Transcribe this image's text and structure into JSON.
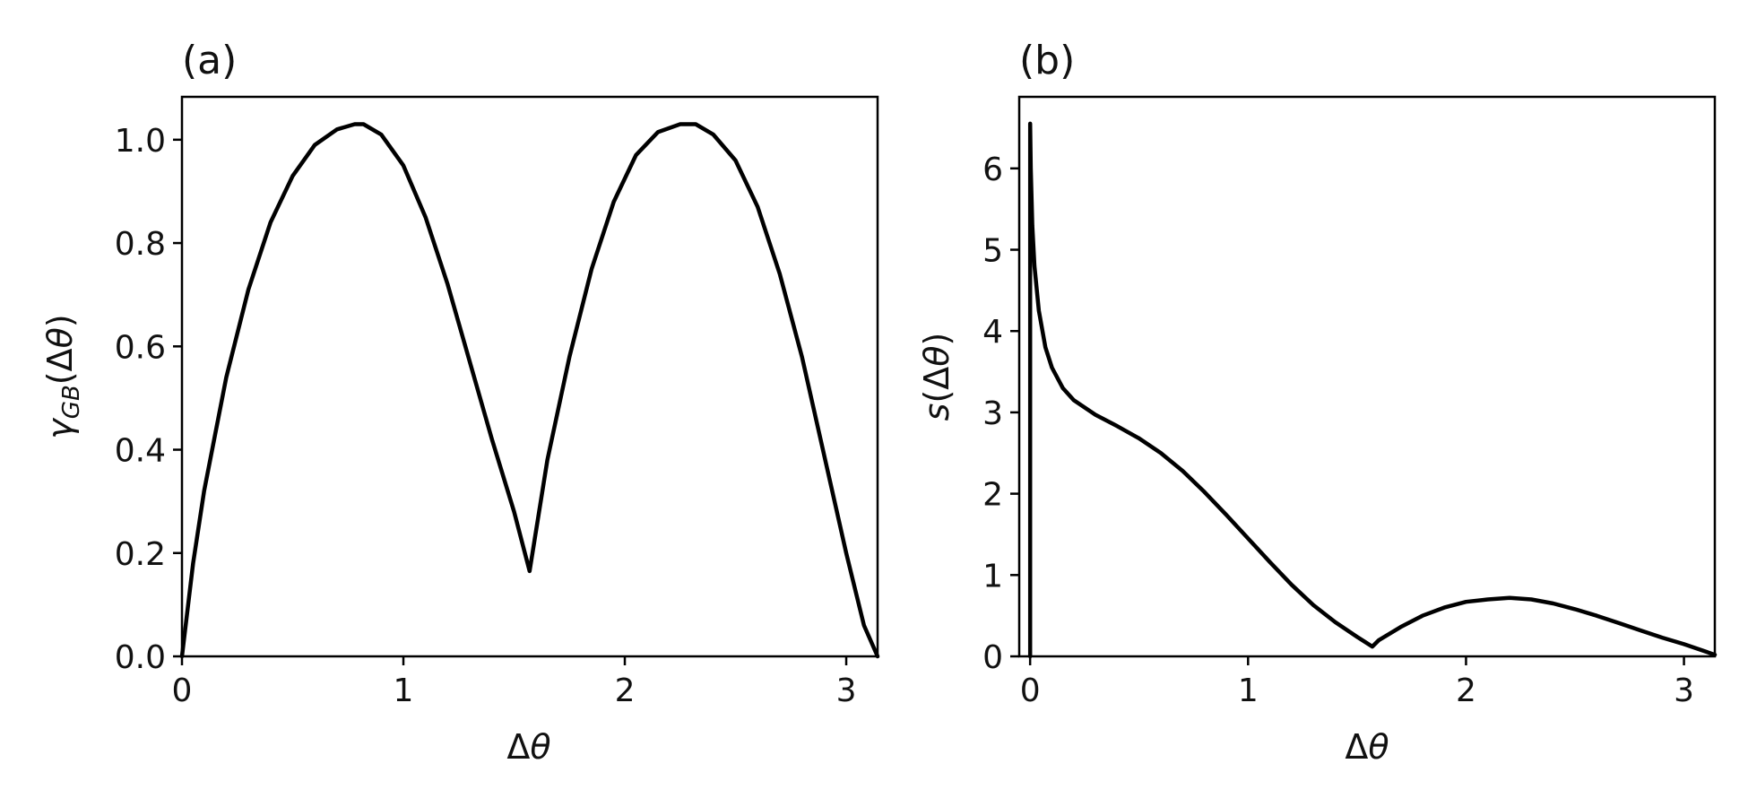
{
  "chart_data": [
    {
      "type": "line",
      "panel_label": "(a)",
      "xlabel": "Δθ",
      "ylabel": "γGB(Δθ)",
      "xlim": [
        0,
        3.1416
      ],
      "ylim": [
        0,
        1.083
      ],
      "xticks": [
        0,
        1,
        2,
        3
      ],
      "xtick_labels": [
        "0",
        "1",
        "2",
        "3"
      ],
      "yticks": [
        0,
        0.2,
        0.4,
        0.6,
        0.8,
        1.0
      ],
      "ytick_labels": [
        "0.0",
        "0.2",
        "0.4",
        "0.6",
        "0.8",
        "1.0"
      ],
      "grid": false,
      "series": [
        {
          "color": "#000000",
          "x": [
            0,
            0.05,
            0.1,
            0.2,
            0.3,
            0.4,
            0.5,
            0.6,
            0.7,
            0.78,
            0.82,
            0.9,
            1.0,
            1.1,
            1.2,
            1.3,
            1.4,
            1.5,
            1.57,
            1.65,
            1.75,
            1.85,
            1.95,
            2.05,
            2.15,
            2.25,
            2.32,
            2.4,
            2.5,
            2.6,
            2.7,
            2.8,
            2.9,
            3.0,
            3.08,
            3.1416
          ],
          "y": [
            0,
            0.18,
            0.32,
            0.54,
            0.71,
            0.84,
            0.93,
            0.99,
            1.02,
            1.03,
            1.03,
            1.01,
            0.95,
            0.85,
            0.72,
            0.57,
            0.42,
            0.28,
            0.165,
            0.38,
            0.58,
            0.75,
            0.88,
            0.97,
            1.015,
            1.03,
            1.03,
            1.01,
            0.96,
            0.87,
            0.74,
            0.58,
            0.39,
            0.2,
            0.06,
            0
          ]
        }
      ]
    },
    {
      "type": "line",
      "panel_label": "(b)",
      "xlabel": "Δθ",
      "ylabel": "s(Δθ)",
      "xlim": [
        -0.05,
        3.1416
      ],
      "ylim": [
        0,
        6.88
      ],
      "xticks": [
        0,
        1,
        2,
        3
      ],
      "xtick_labels": [
        "0",
        "1",
        "2",
        "3"
      ],
      "yticks": [
        0,
        1,
        2,
        3,
        4,
        5,
        6
      ],
      "ytick_labels": [
        "0",
        "1",
        "2",
        "3",
        "4",
        "5",
        "6"
      ],
      "grid": false,
      "series": [
        {
          "color": "#000000",
          "x": [
            0,
            0,
            0.003,
            0.01,
            0.02,
            0.04,
            0.07,
            0.1,
            0.15,
            0.2,
            0.3,
            0.4,
            0.5,
            0.6,
            0.7,
            0.8,
            0.9,
            1.0,
            1.1,
            1.2,
            1.3,
            1.4,
            1.5,
            1.57,
            1.6,
            1.7,
            1.8,
            1.9,
            2.0,
            2.1,
            2.2,
            2.3,
            2.4,
            2.5,
            2.6,
            2.7,
            2.8,
            2.9,
            3.0,
            3.1416
          ],
          "y": [
            0,
            6.55,
            6.0,
            5.3,
            4.8,
            4.25,
            3.8,
            3.55,
            3.3,
            3.15,
            2.97,
            2.83,
            2.68,
            2.5,
            2.28,
            2.02,
            1.74,
            1.45,
            1.16,
            0.88,
            0.63,
            0.42,
            0.24,
            0.12,
            0.2,
            0.36,
            0.5,
            0.6,
            0.67,
            0.7,
            0.72,
            0.7,
            0.65,
            0.58,
            0.5,
            0.41,
            0.32,
            0.23,
            0.15,
            0.02
          ]
        }
      ]
    }
  ]
}
